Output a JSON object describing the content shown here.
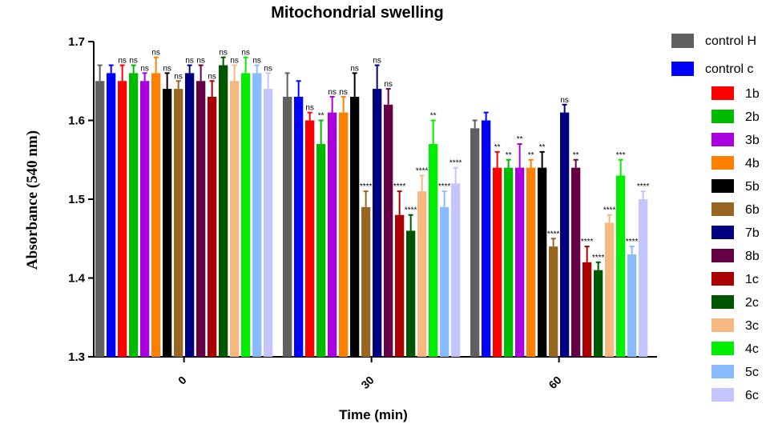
{
  "chart_data": {
    "type": "bar",
    "title": "Mitochondrial swelling",
    "xlabel": "Time (min)",
    "ylabel": "Absorbance (540 nm)",
    "ylim": [
      1.3,
      1.7
    ],
    "yticks": [
      "1.3",
      "1.4",
      "1.5",
      "1.6",
      "1.7"
    ],
    "categories": [
      "0",
      "30",
      "60"
    ],
    "legend_position": "right",
    "grid": false,
    "series": [
      {
        "name": "control H",
        "color": "#606060",
        "values": [
          1.65,
          1.63,
          1.59
        ],
        "errors": [
          0.02,
          0.03,
          0.01
        ],
        "labels": [
          "",
          "",
          ""
        ]
      },
      {
        "name": "control c",
        "color": "#0000ff",
        "values": [
          1.66,
          1.63,
          1.6
        ],
        "errors": [
          0.01,
          0.02,
          0.01
        ],
        "labels": [
          "",
          "",
          ""
        ]
      },
      {
        "name": "1b",
        "color": "#ff0000",
        "values": [
          1.65,
          1.6,
          1.54
        ],
        "errors": [
          0.02,
          0.01,
          0.02
        ],
        "labels": [
          "ns",
          "ns",
          "**"
        ]
      },
      {
        "name": "2b",
        "color": "#00bb00",
        "values": [
          1.66,
          1.57,
          1.54
        ],
        "errors": [
          0.01,
          0.03,
          0.01
        ],
        "labels": [
          "ns",
          "**",
          "**"
        ]
      },
      {
        "name": "3b",
        "color": "#aa00dd",
        "values": [
          1.65,
          1.61,
          1.54
        ],
        "errors": [
          0.01,
          0.02,
          0.03
        ],
        "labels": [
          "ns",
          "ns",
          "**"
        ]
      },
      {
        "name": "4b",
        "color": "#ff8000",
        "values": [
          1.66,
          1.61,
          1.54
        ],
        "errors": [
          0.02,
          0.02,
          0.01
        ],
        "labels": [
          "ns",
          "ns",
          "**"
        ]
      },
      {
        "name": "5b",
        "color": "#000000",
        "values": [
          1.64,
          1.63,
          1.54
        ],
        "errors": [
          0.02,
          0.03,
          0.02
        ],
        "labels": [
          "ns",
          "ns",
          "**"
        ]
      },
      {
        "name": "6b",
        "color": "#996622",
        "values": [
          1.64,
          1.49,
          1.44
        ],
        "errors": [
          0.01,
          0.02,
          0.01
        ],
        "labels": [
          "ns",
          "****",
          "****"
        ]
      },
      {
        "name": "7b",
        "color": "#000080",
        "values": [
          1.66,
          1.64,
          1.61
        ],
        "errors": [
          0.01,
          0.03,
          0.01
        ],
        "labels": [
          "ns",
          "ns",
          "ns"
        ]
      },
      {
        "name": "8b",
        "color": "#660044",
        "values": [
          1.65,
          1.62,
          1.54
        ],
        "errors": [
          0.02,
          0.02,
          0.01
        ],
        "labels": [
          "ns",
          "ns",
          "**"
        ]
      },
      {
        "name": "1c",
        "color": "#aa0000",
        "values": [
          1.63,
          1.48,
          1.42
        ],
        "errors": [
          0.02,
          0.03,
          0.02
        ],
        "labels": [
          "ns",
          "****",
          "****"
        ]
      },
      {
        "name": "2c",
        "color": "#005500",
        "values": [
          1.67,
          1.46,
          1.41
        ],
        "errors": [
          0.01,
          0.02,
          0.01
        ],
        "labels": [
          "ns",
          "****",
          "****"
        ]
      },
      {
        "name": "3c",
        "color": "#f4b880",
        "values": [
          1.65,
          1.51,
          1.47
        ],
        "errors": [
          0.02,
          0.02,
          0.01
        ],
        "labels": [
          "ns",
          "****",
          "****"
        ]
      },
      {
        "name": "4c",
        "color": "#00ee00",
        "values": [
          1.66,
          1.57,
          1.53
        ],
        "errors": [
          0.02,
          0.03,
          0.02
        ],
        "labels": [
          "ns",
          "**",
          "***"
        ]
      },
      {
        "name": "5c",
        "color": "#88bbff",
        "values": [
          1.66,
          1.49,
          1.43
        ],
        "errors": [
          0.01,
          0.02,
          0.01
        ],
        "labels": [
          "ns",
          "****",
          "****"
        ]
      },
      {
        "name": "6c",
        "color": "#c4c4ff",
        "values": [
          1.64,
          1.52,
          1.5
        ],
        "errors": [
          0.02,
          0.02,
          0.01
        ],
        "labels": [
          "ns",
          "****",
          "****"
        ]
      }
    ]
  }
}
